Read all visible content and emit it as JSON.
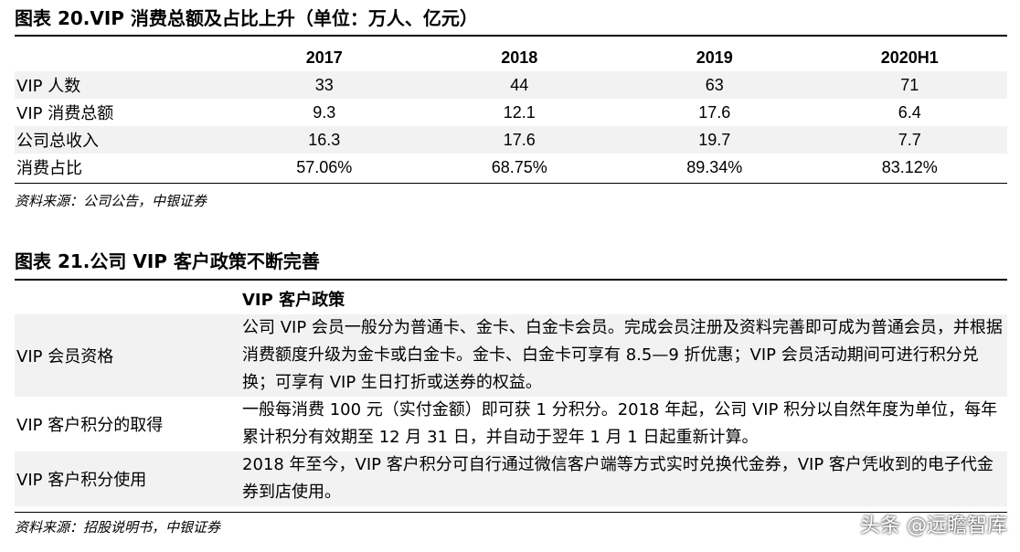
{
  "table1": {
    "title": "图表 20.VIP 消费总额及占比上升（单位：万人、亿元）",
    "columns": [
      "2017",
      "2018",
      "2019",
      "2020H1"
    ],
    "rows": [
      {
        "label": "VIP 人数",
        "values": [
          "33",
          "44",
          "63",
          "71"
        ]
      },
      {
        "label": "VIP 消费总额",
        "values": [
          "9.3",
          "12.1",
          "17.6",
          "6.4"
        ]
      },
      {
        "label": "公司总收入",
        "values": [
          "16.3",
          "17.6",
          "19.7",
          "7.7"
        ]
      },
      {
        "label": "消费占比",
        "values": [
          "57.06%",
          "68.75%",
          "89.34%",
          "83.12%"
        ]
      }
    ],
    "source": "资料来源：公司公告，中银证券"
  },
  "table2": {
    "title": "图表 21.公司 VIP 客户政策不断完善",
    "header": "VIP 客户政策",
    "rows": [
      {
        "label": "VIP 会员资格",
        "text": "公司 VIP 会员一般分为普通卡、金卡、白金卡会员。完成会员注册及资料完善即可成为普通会员，并根据消费额度升级为金卡或白金卡。金卡、白金卡可享有 8.5—9 折优惠；VIP 会员活动期间可进行积分兑换；可享有 VIP 生日打折或送券的权益。"
      },
      {
        "label": "VIP 客户积分的取得",
        "text": "一般每消费 100 元（实付金额）即可获 1 分积分。2018 年起，公司 VIP 积分以自然年度为单位，每年累计积分有效期至 12 月 31 日，并自动于翌年 1 月 1 日起重新计算。"
      },
      {
        "label": "VIP 客户积分使用",
        "text": "2018 年至今，VIP 客户积分可自行通过微信客户端等方式实时兑换代金券，VIP 客户凭收到的电子代金券到店使用。"
      }
    ],
    "source": "资料来源：招股说明书，中银证券"
  },
  "watermark": "头条 @远瞻智库"
}
